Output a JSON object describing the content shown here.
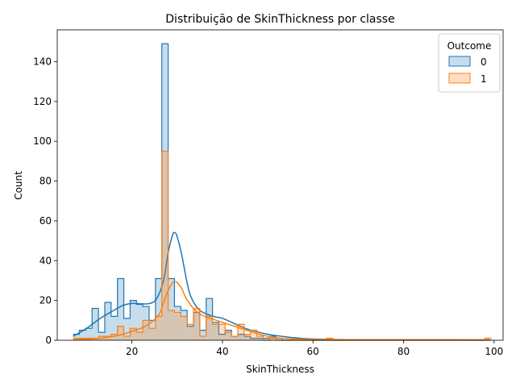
{
  "chart_data": {
    "type": "histogram",
    "title": "Distribuição de SkinThickness por classe",
    "xlabel": "SkinThickness",
    "ylabel": "Count",
    "xlim": [
      3.5,
      102
    ],
    "ylim": [
      0,
      156
    ],
    "x_ticks": [
      20,
      40,
      60,
      80,
      100
    ],
    "y_ticks": [
      0,
      20,
      40,
      60,
      80,
      100,
      120,
      140
    ],
    "bin_start": 7,
    "bin_width": 1.4,
    "grid": false,
    "legend": {
      "title": "Outcome",
      "placement": "top-right"
    },
    "series": [
      {
        "name": "0",
        "color": "#1f77b4",
        "counts": [
          3,
          5,
          6,
          16,
          4,
          19,
          12,
          31,
          11,
          20,
          18,
          17,
          10,
          31,
          149,
          31,
          17,
          15,
          7,
          14,
          5,
          21,
          9,
          3,
          5,
          2,
          3,
          2,
          1,
          1,
          1,
          2,
          1,
          0,
          0,
          1,
          0,
          0,
          0,
          0,
          0,
          0,
          0,
          0,
          0,
          0,
          0,
          0,
          0,
          0,
          0,
          0,
          0,
          0,
          0,
          0,
          0,
          0,
          0,
          0,
          0,
          0,
          0,
          0,
          0,
          0
        ],
        "kde": [
          [
            7,
            2
          ],
          [
            10,
            6
          ],
          [
            13,
            11
          ],
          [
            16,
            15
          ],
          [
            18,
            17.5
          ],
          [
            20,
            18.5
          ],
          [
            22,
            18.3
          ],
          [
            24,
            18.5
          ],
          [
            25.5,
            21
          ],
          [
            27,
            30
          ],
          [
            28,
            44
          ],
          [
            29,
            53
          ],
          [
            29.5,
            54
          ],
          [
            30,
            52
          ],
          [
            31,
            43
          ],
          [
            32,
            31
          ],
          [
            33,
            22
          ],
          [
            35,
            15
          ],
          [
            38,
            12
          ],
          [
            40,
            11
          ],
          [
            43,
            8
          ],
          [
            45,
            6
          ],
          [
            48,
            4
          ],
          [
            50,
            3
          ],
          [
            53,
            2
          ],
          [
            57,
            1
          ],
          [
            62,
            0.5
          ],
          [
            70,
            0.3
          ],
          [
            99,
            0.2
          ]
        ]
      },
      {
        "name": "1",
        "color": "#ff7f0e",
        "counts": [
          1,
          1,
          1,
          1,
          2,
          2,
          3,
          7,
          2,
          6,
          4,
          10,
          6,
          12,
          95,
          15,
          14,
          12,
          8,
          16,
          2,
          12,
          8,
          8,
          4,
          2,
          8,
          3,
          5,
          2,
          0,
          1,
          0,
          0,
          0,
          0,
          0,
          0,
          0,
          0,
          1,
          0,
          0,
          0,
          0,
          0,
          0,
          0,
          0,
          0,
          0,
          0,
          0,
          0,
          0,
          0,
          0,
          0,
          0,
          0,
          0,
          0,
          0,
          0,
          0,
          1
        ],
        "kde": [
          [
            7,
            0.2
          ],
          [
            10,
            0.5
          ],
          [
            13,
            1
          ],
          [
            16,
            2
          ],
          [
            18,
            3
          ],
          [
            20,
            4.5
          ],
          [
            22,
            6
          ],
          [
            24,
            8.5
          ],
          [
            26,
            13
          ],
          [
            27,
            19
          ],
          [
            28,
            25
          ],
          [
            29,
            29
          ],
          [
            29.5,
            29.5
          ],
          [
            30,
            29
          ],
          [
            31,
            26
          ],
          [
            32,
            21
          ],
          [
            34,
            15
          ],
          [
            36,
            12
          ],
          [
            38,
            10.5
          ],
          [
            40,
            9
          ],
          [
            42,
            7.5
          ],
          [
            44,
            6
          ],
          [
            46,
            4.5
          ],
          [
            48,
            3
          ],
          [
            50,
            2
          ],
          [
            53,
            1
          ],
          [
            57,
            0.5
          ],
          [
            65,
            0.3
          ],
          [
            99,
            0.2
          ]
        ]
      }
    ]
  }
}
